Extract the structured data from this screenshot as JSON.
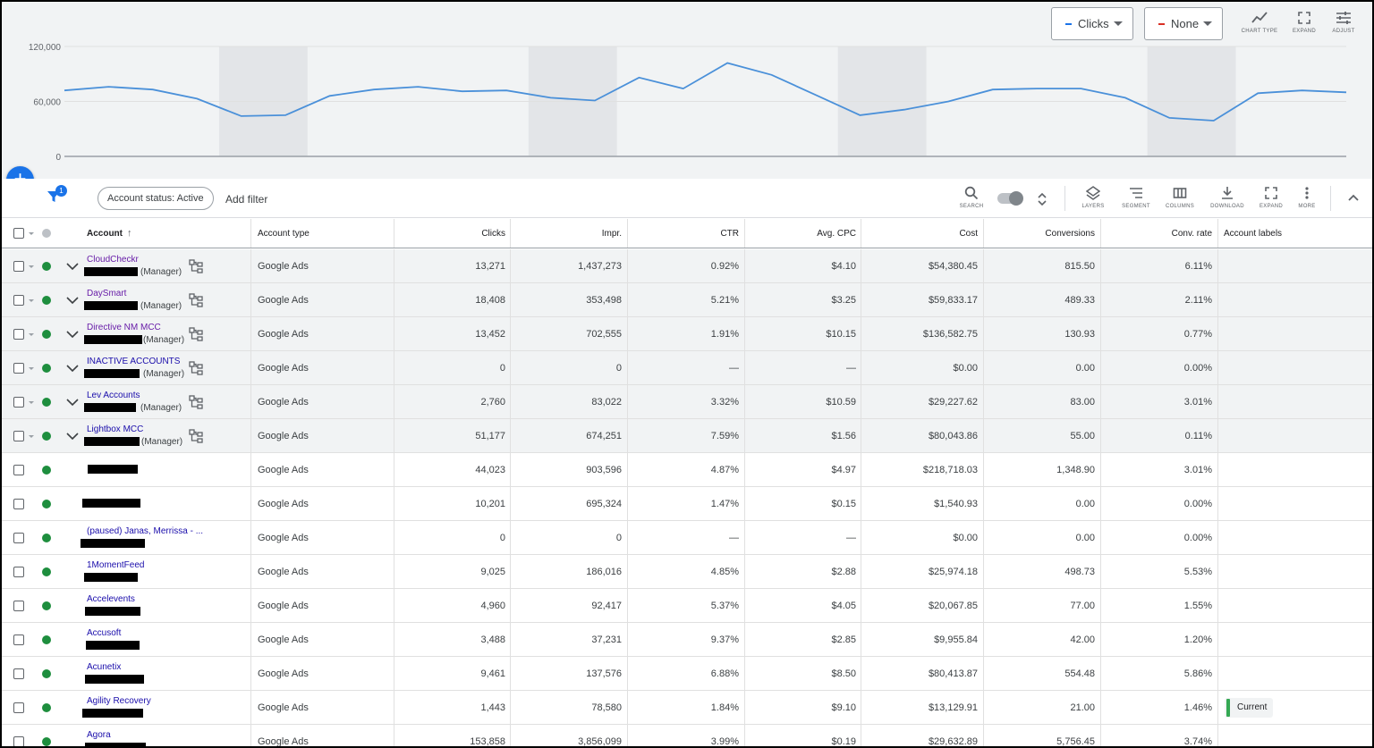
{
  "chart": {
    "primary_metric": "Clicks",
    "secondary_metric": "None",
    "primary_color": "#1a73e8",
    "secondary_color": "#d93025",
    "tools": [
      {
        "label": "CHART TYPE",
        "icon": "chart-line-icon"
      },
      {
        "label": "EXPAND",
        "icon": "expand-icon"
      },
      {
        "label": "ADJUST",
        "icon": "adjust-sliders-icon"
      }
    ]
  },
  "chart_data": {
    "type": "line",
    "y_ticks": [
      "120,000",
      "60,000",
      "0"
    ],
    "ylim": [
      0,
      120000
    ],
    "series": [
      {
        "values": [
          72000,
          76000,
          73000,
          63000,
          44000,
          45000,
          66000,
          73000,
          76000,
          71000,
          72000,
          64000,
          61000,
          86000,
          74000,
          102000,
          89000,
          67000,
          45000,
          51000,
          60000,
          73000,
          74000,
          74000,
          64000,
          42000,
          39000,
          69000,
          72000,
          70000
        ]
      }
    ],
    "weekend_bands": [
      [
        4,
        5
      ],
      [
        11,
        12
      ],
      [
        18,
        19
      ],
      [
        25,
        26
      ]
    ],
    "grid": true
  },
  "fab": {
    "label": "+"
  },
  "filters": {
    "badge_count": "1",
    "status_chip": "Account status: Active",
    "add_filter": "Add filter"
  },
  "toolbar": {
    "search": "SEARCH",
    "layers": "LAYERS",
    "segment": "SEGMENT",
    "columns": "COLUMNS",
    "download": "DOWNLOAD",
    "expand": "EXPAND",
    "more": "MORE"
  },
  "table": {
    "headers": {
      "account": "Account",
      "account_type": "Account type",
      "clicks": "Clicks",
      "impr": "Impr.",
      "ctr": "CTR",
      "avg_cpc": "Avg. CPC",
      "cost": "Cost",
      "conversions": "Conversions",
      "conv_rate": "Conv. rate",
      "account_labels": "Account labels"
    },
    "rows": [
      {
        "name": "CloudCheckr",
        "manager": "(Manager)",
        "type": "Google Ads",
        "clicks": "13,271",
        "impr": "1,437,273",
        "ctr": "0.92%",
        "cpc": "$4.10",
        "cost": "$54,380.45",
        "conv": "815.50",
        "rate": "6.11%",
        "label": ""
      },
      {
        "name": "DaySmart",
        "manager": "(Manager)",
        "type": "Google Ads",
        "clicks": "18,408",
        "impr": "353,498",
        "ctr": "5.21%",
        "cpc": "$3.25",
        "cost": "$59,833.17",
        "conv": "489.33",
        "rate": "2.11%",
        "label": ""
      },
      {
        "name": "Directive NM MCC",
        "manager": "(Manager)",
        "type": "Google Ads",
        "clicks": "13,452",
        "impr": "702,555",
        "ctr": "1.91%",
        "cpc": "$10.15",
        "cost": "$136,582.75",
        "conv": "130.93",
        "rate": "0.77%",
        "label": ""
      },
      {
        "name": "INACTIVE ACCOUNTS",
        "manager": "(Manager)",
        "type": "Google Ads",
        "clicks": "0",
        "impr": "0",
        "ctr": "—",
        "cpc": "—",
        "cost": "$0.00",
        "conv": "0.00",
        "rate": "0.00%",
        "label": ""
      },
      {
        "name": "Lev Accounts",
        "manager": "(Manager)",
        "type": "Google Ads",
        "clicks": "2,760",
        "impr": "83,022",
        "ctr": "3.32%",
        "cpc": "$10.59",
        "cost": "$29,227.62",
        "conv": "83.00",
        "rate": "3.01%",
        "label": ""
      },
      {
        "name": "Lightbox MCC",
        "manager": "(Manager)",
        "type": "Google Ads",
        "clicks": "51,177",
        "impr": "674,251",
        "ctr": "7.59%",
        "cpc": "$1.56",
        "cost": "$80,043.86",
        "conv": "55.00",
        "rate": "0.11%",
        "label": ""
      },
      {
        "name": "",
        "manager": "",
        "type": "Google Ads",
        "clicks": "44,023",
        "impr": "903,596",
        "ctr": "4.87%",
        "cpc": "$4.97",
        "cost": "$218,718.03",
        "conv": "1,348.90",
        "rate": "3.01%",
        "label": ""
      },
      {
        "name": "",
        "manager": "",
        "type": "Google Ads",
        "clicks": "10,201",
        "impr": "695,324",
        "ctr": "1.47%",
        "cpc": "$0.15",
        "cost": "$1,540.93",
        "conv": "0.00",
        "rate": "0.00%",
        "label": ""
      },
      {
        "name": "(paused) Janas, Merrissa - ...",
        "manager": "",
        "type": "Google Ads",
        "clicks": "0",
        "impr": "0",
        "ctr": "—",
        "cpc": "—",
        "cost": "$0.00",
        "conv": "0.00",
        "rate": "0.00%",
        "label": ""
      },
      {
        "name": "1MomentFeed",
        "manager": "",
        "type": "Google Ads",
        "clicks": "9,025",
        "impr": "186,016",
        "ctr": "4.85%",
        "cpc": "$2.88",
        "cost": "$25,974.18",
        "conv": "498.73",
        "rate": "5.53%",
        "label": ""
      },
      {
        "name": "Accelevents",
        "manager": "",
        "type": "Google Ads",
        "clicks": "4,960",
        "impr": "92,417",
        "ctr": "5.37%",
        "cpc": "$4.05",
        "cost": "$20,067.85",
        "conv": "77.00",
        "rate": "1.55%",
        "label": ""
      },
      {
        "name": "Accusoft",
        "manager": "",
        "type": "Google Ads",
        "clicks": "3,488",
        "impr": "37,231",
        "ctr": "9.37%",
        "cpc": "$2.85",
        "cost": "$9,955.84",
        "conv": "42.00",
        "rate": "1.20%",
        "label": ""
      },
      {
        "name": "Acunetix",
        "manager": "",
        "type": "Google Ads",
        "clicks": "9,461",
        "impr": "137,576",
        "ctr": "6.88%",
        "cpc": "$8.50",
        "cost": "$80,413.87",
        "conv": "554.48",
        "rate": "5.86%",
        "label": ""
      },
      {
        "name": "Agility Recovery",
        "manager": "",
        "type": "Google Ads",
        "clicks": "1,443",
        "impr": "78,580",
        "ctr": "1.84%",
        "cpc": "$9.10",
        "cost": "$13,129.91",
        "conv": "21.00",
        "rate": "1.46%",
        "label": "Current"
      },
      {
        "name": "Agora",
        "manager": "",
        "type": "Google Ads",
        "clicks": "153,858",
        "impr": "3,856,099",
        "ctr": "3.99%",
        "cpc": "$0.19",
        "cost": "$29,632.89",
        "conv": "5,756.45",
        "rate": "3.74%",
        "label": ""
      }
    ]
  }
}
